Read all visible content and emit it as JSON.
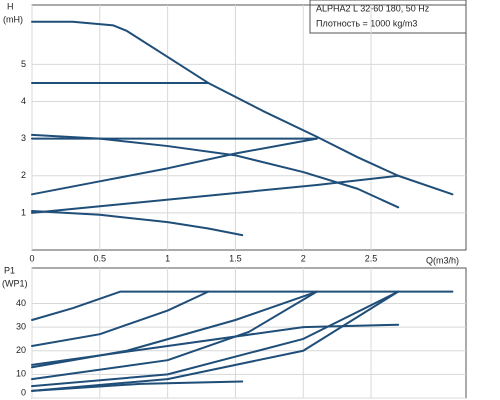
{
  "chart_data": [
    {
      "type": "line",
      "title": "ALPHA2 L 32-60 180, 50 Hz",
      "subtitle": "Плотность = 1000 kg/m3",
      "y_label": "H",
      "y_unit_label": "(mH)",
      "x_label": "Q(m3/h)",
      "xlim": [
        0,
        3.2
      ],
      "ylim": [
        0,
        6.6
      ],
      "xticks": [
        0,
        0.5,
        1,
        1.5,
        2,
        2.5
      ],
      "yticks": [
        1,
        2,
        3,
        4,
        5
      ],
      "grid": true,
      "series": [
        {
          "color": "#1f4e79",
          "x": [
            0,
            0.3,
            0.6,
            0.7,
            1.0,
            1.3,
            1.7,
            2.1,
            2.4,
            2.7,
            3.1
          ],
          "values": [
            6.15,
            6.15,
            6.05,
            5.9,
            5.2,
            4.5,
            3.75,
            3.05,
            2.5,
            2.0,
            1.5
          ]
        },
        {
          "color": "#1f4e79",
          "x": [
            0,
            1.3
          ],
          "values": [
            4.5,
            4.5
          ]
        },
        {
          "color": "#1f4e79",
          "x": [
            0,
            2.1
          ],
          "values": [
            3.0,
            3.0
          ]
        },
        {
          "color": "#1f4e79",
          "x": [
            0,
            0.5,
            1.0,
            1.5,
            2.0,
            2.4,
            2.7
          ],
          "values": [
            3.1,
            3.0,
            2.8,
            2.55,
            2.1,
            1.65,
            1.15
          ]
        },
        {
          "color": "#1f4e79",
          "x": [
            0,
            0.5,
            1.0,
            1.5,
            2.1
          ],
          "values": [
            1.5,
            1.85,
            2.2,
            2.6,
            3.0
          ]
        },
        {
          "color": "#1f4e79",
          "x": [
            0,
            0.7,
            1.4,
            2.1,
            2.7
          ],
          "values": [
            1.0,
            1.25,
            1.5,
            1.75,
            2.0
          ]
        },
        {
          "color": "#1f4e79",
          "x": [
            0,
            0.5,
            1.0,
            1.3,
            1.55
          ],
          "values": [
            1.05,
            0.95,
            0.75,
            0.58,
            0.4
          ]
        }
      ]
    },
    {
      "type": "line",
      "y_label": "P1",
      "y_unit_label": "(WP1)",
      "xlim": [
        0,
        3.2
      ],
      "ylim": [
        0,
        55
      ],
      "yticks": [
        0,
        10,
        20,
        30,
        40
      ],
      "grid": true,
      "series": [
        {
          "color": "#1f4e79",
          "x": [
            0,
            0.3,
            0.65,
            3.1
          ],
          "values": [
            33,
            38,
            45,
            45
          ]
        },
        {
          "color": "#1f4e79",
          "x": [
            0,
            0.5,
            1.0,
            1.3
          ],
          "values": [
            22,
            27,
            37,
            45
          ]
        },
        {
          "color": "#1f4e79",
          "x": [
            0,
            0.7,
            1.5,
            2.1
          ],
          "values": [
            13,
            20,
            33,
            45
          ]
        },
        {
          "color": "#1f4e79",
          "x": [
            0,
            1.0,
            2.0,
            2.7
          ],
          "values": [
            14,
            22,
            30,
            31
          ]
        },
        {
          "color": "#1f4e79",
          "x": [
            0,
            1.0,
            1.6,
            2.1
          ],
          "values": [
            8,
            16,
            28,
            45
          ]
        },
        {
          "color": "#1f4e79",
          "x": [
            0,
            1.0,
            2.0,
            2.7
          ],
          "values": [
            5,
            10,
            25,
            45
          ]
        },
        {
          "color": "#1f4e79",
          "x": [
            0,
            1.0,
            2.0,
            2.7
          ],
          "values": [
            3,
            8,
            20,
            45
          ]
        },
        {
          "color": "#1f4e79",
          "x": [
            0,
            0.8,
            1.55
          ],
          "values": [
            3,
            6,
            7
          ]
        }
      ]
    }
  ]
}
